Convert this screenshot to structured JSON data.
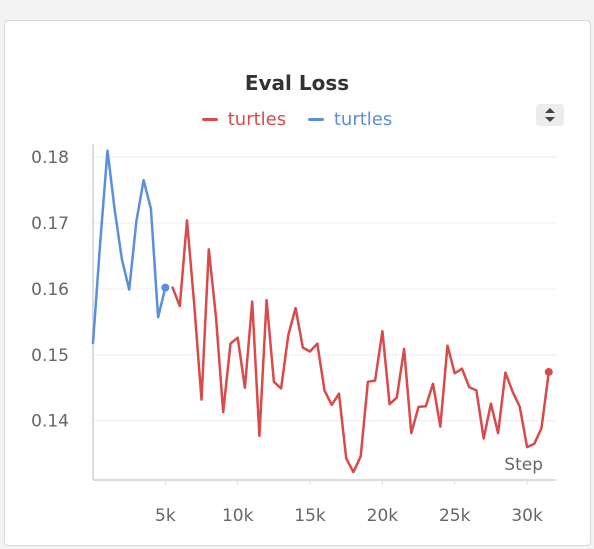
{
  "chart_data": {
    "type": "line",
    "title": "Eval Loss",
    "xlabel": "Step",
    "ylabel": "",
    "xlim": [
      0,
      32000
    ],
    "ylim": [
      0.131,
      0.182
    ],
    "x_ticks": [
      5000,
      10000,
      15000,
      20000,
      25000,
      30000
    ],
    "x_tick_labels": [
      "5k",
      "10k",
      "15k",
      "20k",
      "25k",
      "30k"
    ],
    "y_ticks": [
      0.14,
      0.15,
      0.16,
      0.17,
      0.18
    ],
    "y_tick_labels": [
      "0.14",
      "0.15",
      "0.16",
      "0.17",
      "0.18"
    ],
    "grid": true,
    "legend_position": "top",
    "series": [
      {
        "name": "turtles",
        "color": "#d94a4a",
        "end_marker": true,
        "points": [
          [
            5500,
            0.1602
          ],
          [
            6000,
            0.1574
          ],
          [
            6500,
            0.1704
          ],
          [
            7000,
            0.1575
          ],
          [
            7500,
            0.1432
          ],
          [
            8000,
            0.166
          ],
          [
            8500,
            0.1557
          ],
          [
            9000,
            0.1413
          ],
          [
            9500,
            0.1517
          ],
          [
            10000,
            0.1526
          ],
          [
            10500,
            0.145
          ],
          [
            11000,
            0.1581
          ],
          [
            11500,
            0.1377
          ],
          [
            12000,
            0.1583
          ],
          [
            12500,
            0.1459
          ],
          [
            13000,
            0.1449
          ],
          [
            13500,
            0.153
          ],
          [
            14000,
            0.1571
          ],
          [
            14500,
            0.1511
          ],
          [
            15000,
            0.1505
          ],
          [
            15500,
            0.1517
          ],
          [
            16000,
            0.1446
          ],
          [
            16500,
            0.1424
          ],
          [
            17000,
            0.1441
          ],
          [
            17500,
            0.1343
          ],
          [
            18000,
            0.1322
          ],
          [
            18500,
            0.1346
          ],
          [
            19000,
            0.1459
          ],
          [
            19500,
            0.1461
          ],
          [
            20000,
            0.1536
          ],
          [
            20500,
            0.1425
          ],
          [
            21000,
            0.1435
          ],
          [
            21500,
            0.1509
          ],
          [
            22000,
            0.1381
          ],
          [
            22500,
            0.1421
          ],
          [
            23000,
            0.1422
          ],
          [
            23500,
            0.1456
          ],
          [
            24000,
            0.1391
          ],
          [
            24500,
            0.1514
          ],
          [
            25000,
            0.1472
          ],
          [
            25500,
            0.1479
          ],
          [
            26000,
            0.1451
          ],
          [
            26500,
            0.1446
          ],
          [
            27000,
            0.1373
          ],
          [
            27500,
            0.1426
          ],
          [
            28000,
            0.1381
          ],
          [
            28500,
            0.1473
          ],
          [
            29000,
            0.1444
          ],
          [
            29500,
            0.1421
          ],
          [
            30000,
            0.136
          ],
          [
            30500,
            0.1365
          ],
          [
            31000,
            0.1389
          ],
          [
            31500,
            0.1474
          ]
        ]
      },
      {
        "name": "turtles",
        "color": "#5b8fd9",
        "end_marker": true,
        "points": [
          [
            0,
            0.1518
          ],
          [
            500,
            0.167
          ],
          [
            1000,
            0.181
          ],
          [
            1500,
            0.172
          ],
          [
            2000,
            0.1645
          ],
          [
            2500,
            0.1599
          ],
          [
            3000,
            0.1703
          ],
          [
            3500,
            0.1765
          ],
          [
            4000,
            0.1722
          ],
          [
            4500,
            0.1557
          ],
          [
            5000,
            0.1602
          ]
        ]
      }
    ]
  }
}
